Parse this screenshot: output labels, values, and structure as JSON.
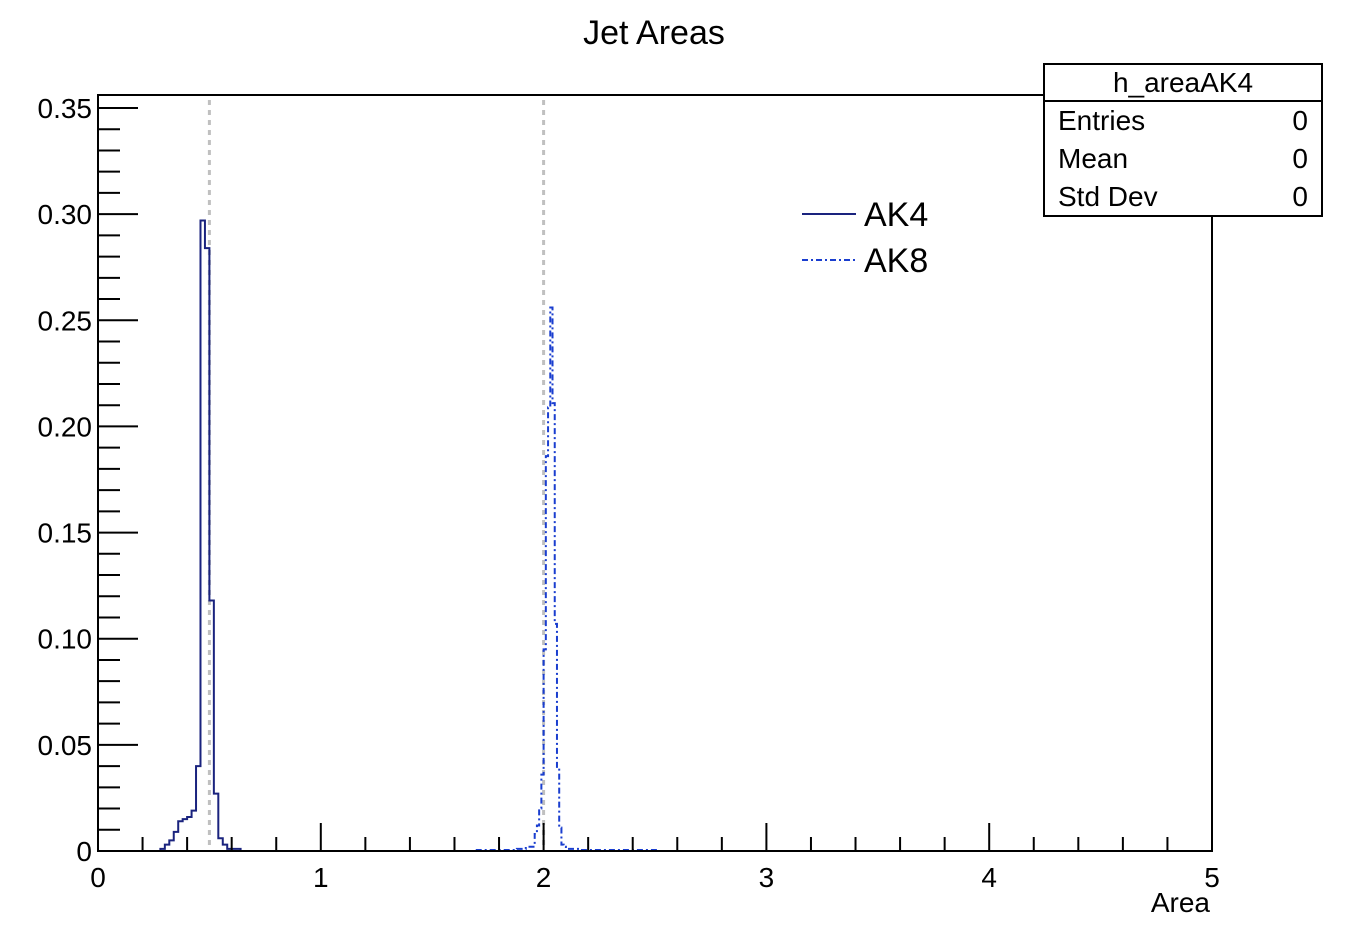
{
  "chart_data": {
    "type": "histogram",
    "title": "Jet Areas",
    "xlabel": "Area",
    "ylabel": "",
    "xlim": [
      0,
      5
    ],
    "ylim": [
      0,
      0.35
    ],
    "x_ticks": [
      "0",
      "1",
      "2",
      "3",
      "4",
      "5"
    ],
    "y_ticks": [
      "0",
      "0.05",
      "0.10",
      "0.15",
      "0.20",
      "0.25",
      "0.30",
      "0.35"
    ],
    "reference_lines_x": [
      0.5,
      2.0
    ],
    "reference_line_color": "#c0c0c0",
    "legend": {
      "placement": "top-right",
      "entries": [
        {
          "label": "AK4",
          "style": "solid"
        },
        {
          "label": "AK8",
          "style": "dash-dot"
        }
      ]
    },
    "stats_box": {
      "name": "h_areaAK4",
      "rows": [
        {
          "label": "Entries",
          "value": "0"
        },
        {
          "label": "Mean",
          "value": "0"
        },
        {
          "label": "Std Dev",
          "value": "0"
        }
      ]
    },
    "series": [
      {
        "name": "AK4",
        "color": "#1a237e",
        "style": "solid",
        "bin_width": 0.02,
        "bin_edges_start": 0.28,
        "values": [
          0.001,
          0.003,
          0.005,
          0.009,
          0.014,
          0.015,
          0.016,
          0.019,
          0.04,
          0.297,
          0.284,
          0.118,
          0.027,
          0.006,
          0.003,
          0.001,
          0.001,
          0.001
        ]
      },
      {
        "name": "AK8",
        "color": "#1a3ecf",
        "style": "dash-dot",
        "bin_width": 0.01,
        "bin_edges_start": 1.7,
        "values": [
          0.0005,
          0.0005,
          0.0005,
          0.0005,
          0.0005,
          0.0005,
          0.0005,
          0.0005,
          0.0005,
          0.0005,
          0.0005,
          0.0005,
          0.0005,
          0.0005,
          0.0005,
          0.0005,
          0.0005,
          0.0005,
          0.001,
          0.001,
          0.001,
          0.001,
          0.002,
          0.002,
          0.002,
          0.002,
          0.008,
          0.012,
          0.02,
          0.036,
          0.095,
          0.186,
          0.209,
          0.256,
          0.211,
          0.107,
          0.039,
          0.011,
          0.003,
          0.002,
          0.001,
          0.001,
          0.001,
          0.001,
          0.001,
          0.001,
          0.0005,
          0.0005,
          0.0005,
          0.0005,
          0.0005,
          0.0005,
          0.0005,
          0.0005,
          0.0005,
          0.0005,
          0.0005,
          0.0005,
          0.0005,
          0.0005,
          0.0005,
          0.0005,
          0.0005,
          0.0005,
          0.0005,
          0.0005,
          0.0005,
          0.0005,
          0.0005,
          0.0005,
          0.0005,
          0.0005,
          0.0005,
          0.0005,
          0.0005,
          0.0005,
          0.0005,
          0.0005,
          0.0005,
          0.0005,
          0.0005
        ]
      }
    ]
  }
}
